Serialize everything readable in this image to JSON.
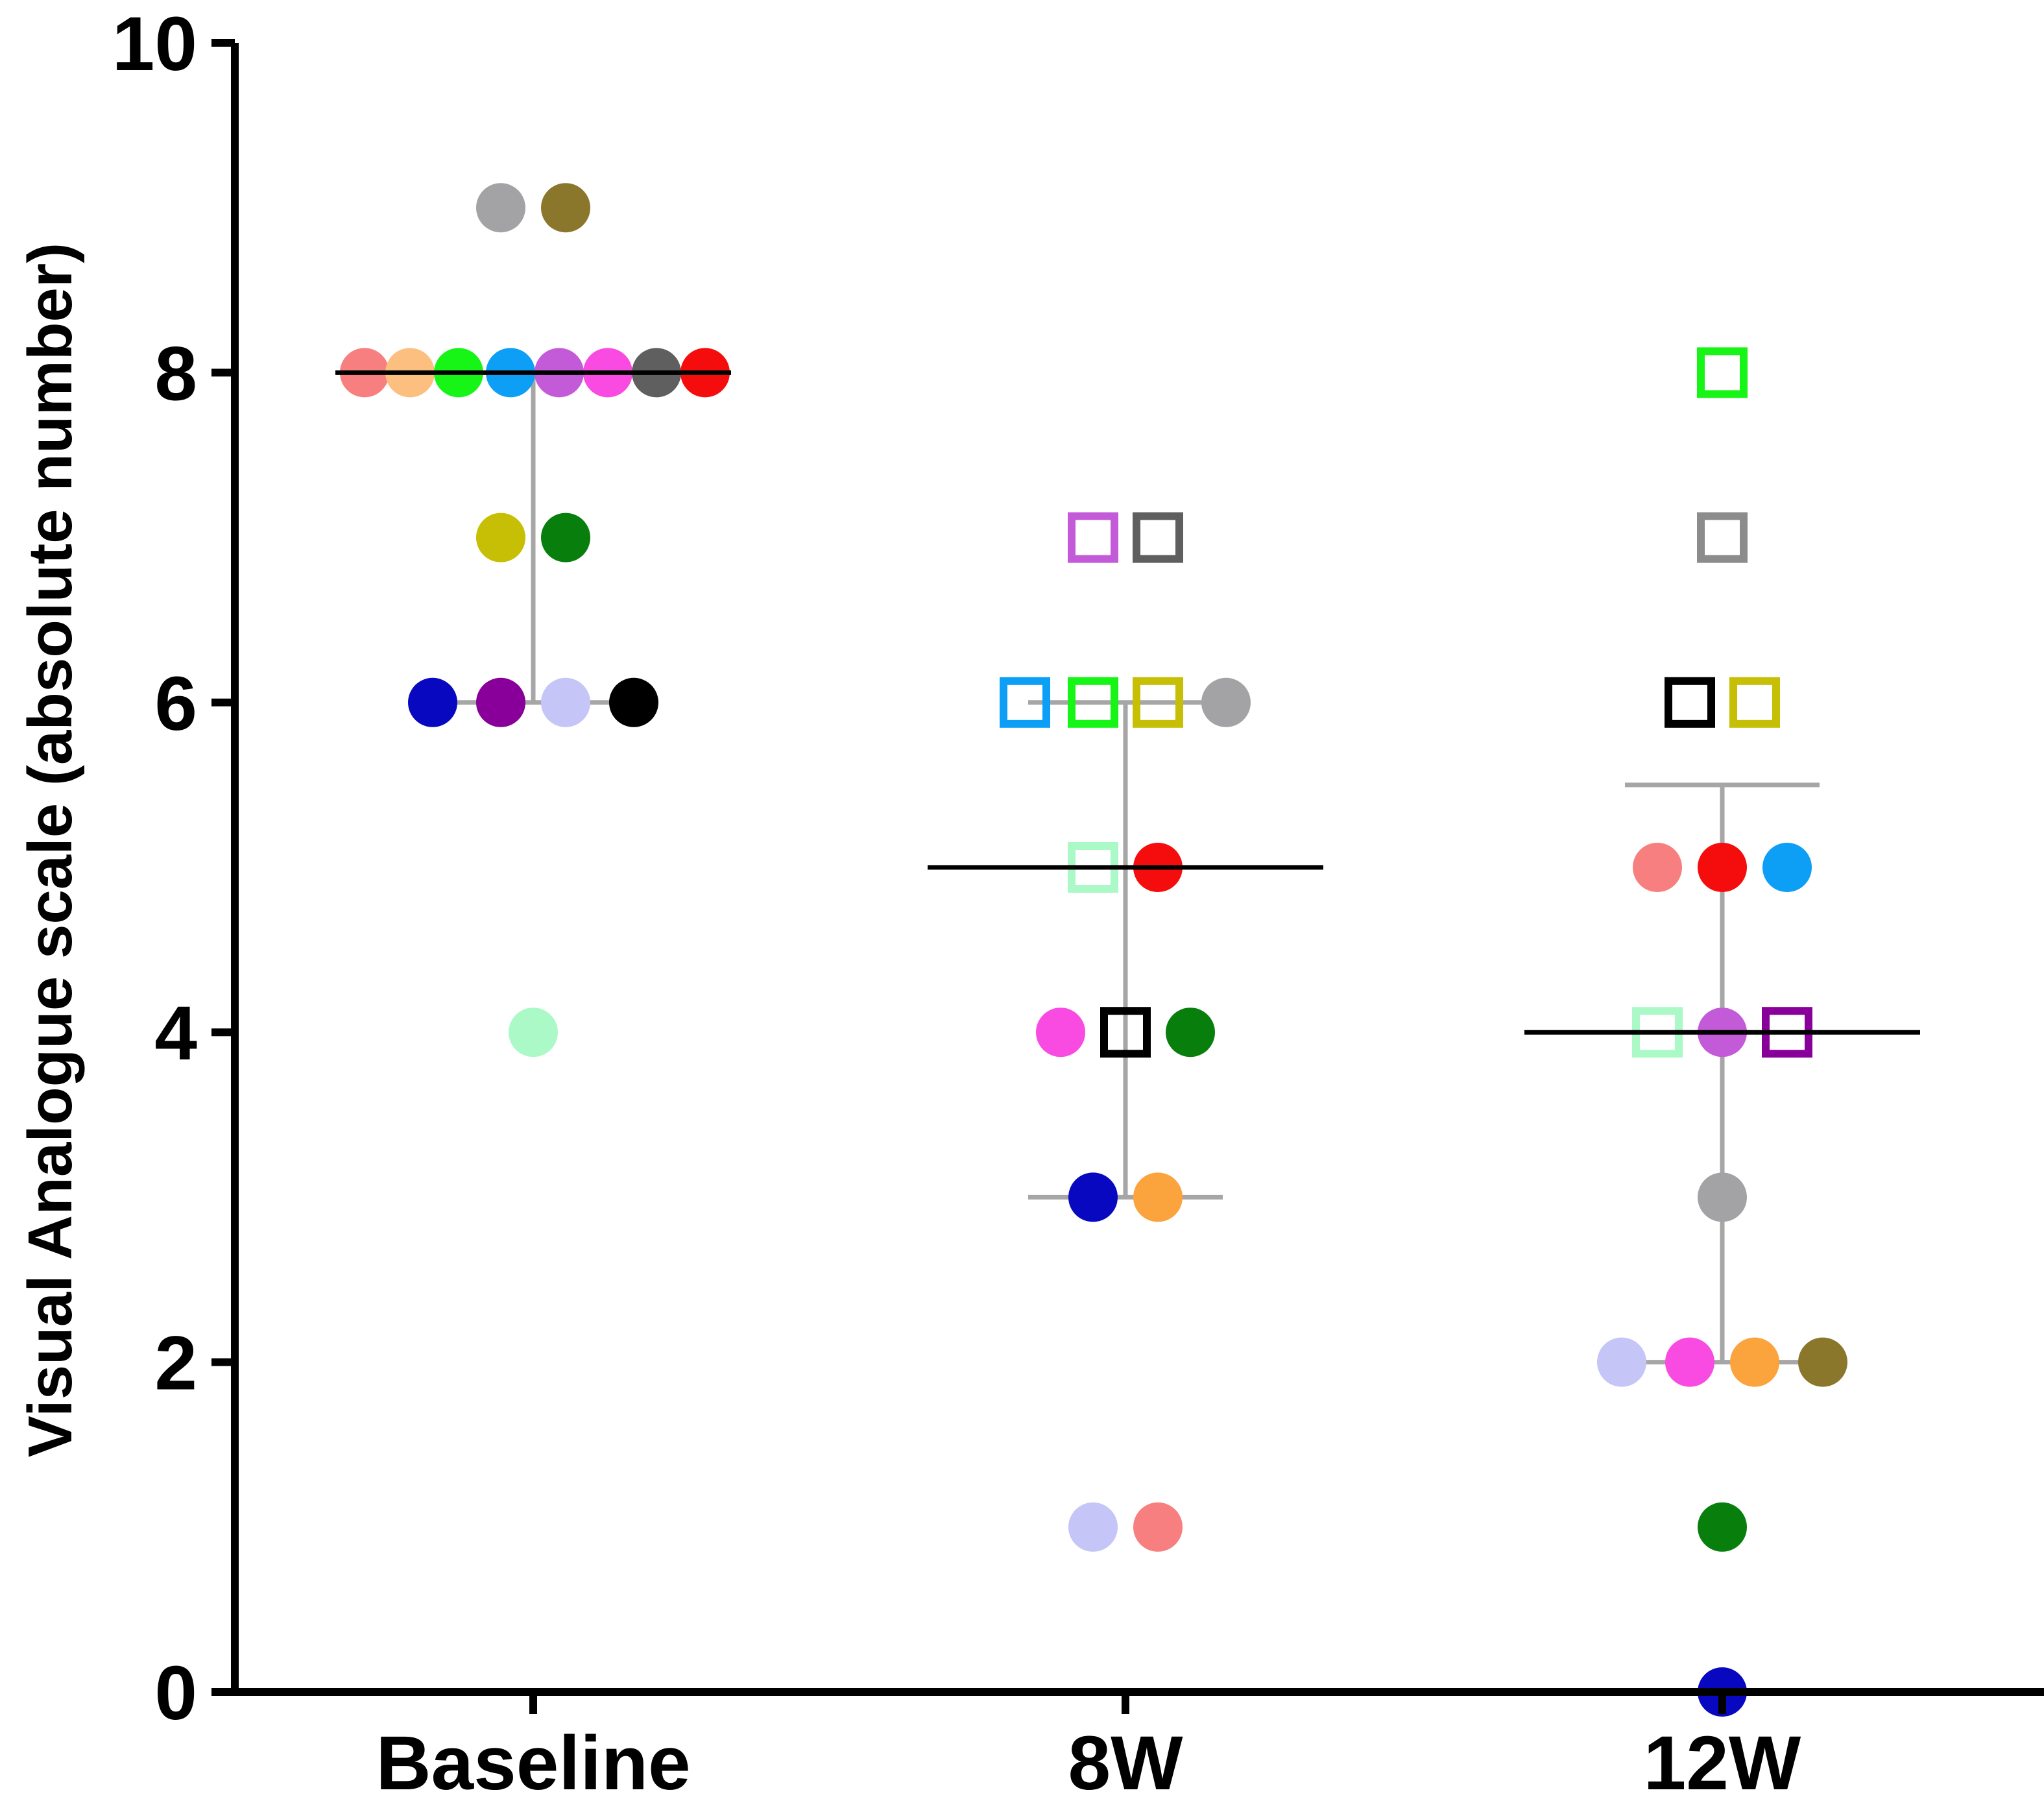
{
  "chart_data": {
    "type": "scatter",
    "title": "",
    "xlabel": "",
    "ylabel": "Visual  Analogue scale (absolute number)",
    "ylim": [
      0,
      10
    ],
    "yticks": [
      "0",
      "2",
      "4",
      "6",
      "8",
      "10"
    ],
    "categories": [
      "Baseline",
      "8W",
      "12W"
    ],
    "grid": false,
    "legend": "none",
    "groups": [
      {
        "category": "Baseline",
        "median": 8,
        "q1": 6,
        "q3": 8,
        "points": [
          {
            "y": 9,
            "offset": -0.5,
            "marker": "circle",
            "color": "#a3a3a6"
          },
          {
            "y": 9,
            "offset": 0.5,
            "marker": "circle",
            "color": "#8b772c"
          },
          {
            "y": 8,
            "offset": -2.6,
            "marker": "circle",
            "color": "#f77f7f"
          },
          {
            "y": 8,
            "offset": -1.9,
            "marker": "circle",
            "color": "#fdbf80"
          },
          {
            "y": 8,
            "offset": -1.15,
            "marker": "circle",
            "color": "#16f516"
          },
          {
            "y": 8,
            "offset": -0.35,
            "marker": "circle",
            "color": "#0d9ff5"
          },
          {
            "y": 8,
            "offset": 0.4,
            "marker": "circle",
            "color": "#c35bd9"
          },
          {
            "y": 8,
            "offset": 1.15,
            "marker": "circle",
            "color": "#f94be1"
          },
          {
            "y": 8,
            "offset": 1.9,
            "marker": "circle",
            "color": "#5f5f5f"
          },
          {
            "y": 8,
            "offset": 2.65,
            "marker": "circle",
            "color": "#f50d0d"
          },
          {
            "y": 7,
            "offset": -0.5,
            "marker": "circle",
            "color": "#c6bf05"
          },
          {
            "y": 7,
            "offset": 0.5,
            "marker": "circle",
            "color": "#087f0d"
          },
          {
            "y": 6,
            "offset": -1.55,
            "marker": "circle",
            "color": "#0808c0"
          },
          {
            "y": 6,
            "offset": -0.5,
            "marker": "circle",
            "color": "#880099"
          },
          {
            "y": 6,
            "offset": 0.5,
            "marker": "circle",
            "color": "#c5c5f7"
          },
          {
            "y": 6,
            "offset": 1.55,
            "marker": "circle",
            "color": "#000000"
          },
          {
            "y": 4,
            "offset": 0,
            "marker": "circle",
            "color": "#aaf9c7"
          }
        ]
      },
      {
        "category": "8W",
        "median": 5,
        "q1": 3,
        "q3": 6,
        "points": [
          {
            "y": 7,
            "offset": -0.5,
            "marker": "square",
            "color": "#c35bd9"
          },
          {
            "y": 7,
            "offset": 0.5,
            "marker": "square",
            "color": "#5f5f5f"
          },
          {
            "y": 6,
            "offset": -1.55,
            "marker": "square",
            "color": "#0d9ff5"
          },
          {
            "y": 6,
            "offset": -0.5,
            "marker": "square",
            "color": "#16f516"
          },
          {
            "y": 6,
            "offset": 0.5,
            "marker": "square",
            "color": "#c6bf05"
          },
          {
            "y": 6,
            "offset": 1.55,
            "marker": "circle",
            "color": "#a3a3a6"
          },
          {
            "y": 5,
            "offset": -0.5,
            "marker": "square",
            "color": "#aaf9c7"
          },
          {
            "y": 5,
            "offset": 0.5,
            "marker": "circle",
            "color": "#f50d0d"
          },
          {
            "y": 4,
            "offset": -1.0,
            "marker": "circle",
            "color": "#f94be1"
          },
          {
            "y": 4,
            "offset": 0,
            "marker": "square",
            "color": "#000000"
          },
          {
            "y": 4,
            "offset": 1.0,
            "marker": "circle",
            "color": "#087f0d"
          },
          {
            "y": 3,
            "offset": -0.5,
            "marker": "circle",
            "color": "#0808c0"
          },
          {
            "y": 3,
            "offset": 0.5,
            "marker": "circle",
            "color": "#fba33c"
          },
          {
            "y": 1,
            "offset": -0.5,
            "marker": "circle",
            "color": "#c5c5f7"
          },
          {
            "y": 1,
            "offset": 0.5,
            "marker": "circle",
            "color": "#f77f7f"
          }
        ]
      },
      {
        "category": "12W",
        "median": 4,
        "q1": 2,
        "q3": 5.5,
        "points": [
          {
            "y": 8,
            "offset": 0,
            "marker": "square",
            "color": "#16f516"
          },
          {
            "y": 7,
            "offset": 0,
            "marker": "square",
            "color": "#8c8c8c"
          },
          {
            "y": 6,
            "offset": -0.5,
            "marker": "square",
            "color": "#000000"
          },
          {
            "y": 6,
            "offset": 0.5,
            "marker": "square",
            "color": "#c6bf05"
          },
          {
            "y": 5,
            "offset": -1.0,
            "marker": "circle",
            "color": "#f77f7f"
          },
          {
            "y": 5,
            "offset": 0,
            "marker": "circle",
            "color": "#f50d0d"
          },
          {
            "y": 5,
            "offset": 1.0,
            "marker": "circle",
            "color": "#0d9ff5"
          },
          {
            "y": 4,
            "offset": -1.0,
            "marker": "square",
            "color": "#aaf9c7"
          },
          {
            "y": 4,
            "offset": 0,
            "marker": "circle",
            "color": "#c35bd9"
          },
          {
            "y": 4,
            "offset": 1.0,
            "marker": "square",
            "color": "#880099"
          },
          {
            "y": 3,
            "offset": 0,
            "marker": "circle",
            "color": "#a3a3a6"
          },
          {
            "y": 2,
            "offset": -1.55,
            "marker": "circle",
            "color": "#c5c5f7"
          },
          {
            "y": 2,
            "offset": -0.5,
            "marker": "circle",
            "color": "#f94be1"
          },
          {
            "y": 2,
            "offset": 0.5,
            "marker": "circle",
            "color": "#fba33c"
          },
          {
            "y": 2,
            "offset": 1.55,
            "marker": "circle",
            "color": "#8b772c"
          },
          {
            "y": 1,
            "offset": 0,
            "marker": "circle",
            "color": "#087f0d"
          },
          {
            "y": 0,
            "offset": 0,
            "marker": "circle",
            "color": "#0808c0"
          }
        ]
      }
    ],
    "colors": {
      "median_line": "#000000",
      "iqr_line": "#a6a6a6",
      "axis": "#000000"
    }
  }
}
